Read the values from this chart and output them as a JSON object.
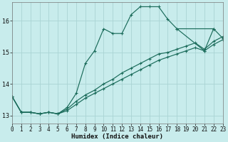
{
  "xlabel": "Humidex (Indice chaleur)",
  "background_color": "#c8ecec",
  "grid_color": "#aad4d4",
  "line_color": "#1a6b5a",
  "xlim": [
    0,
    23
  ],
  "ylim": [
    12.75,
    16.6
  ],
  "xticks": [
    0,
    1,
    2,
    3,
    4,
    5,
    6,
    7,
    8,
    9,
    10,
    11,
    12,
    13,
    14,
    15,
    16,
    17,
    18,
    19,
    20,
    21,
    22,
    23
  ],
  "yticks": [
    13,
    14,
    15,
    16
  ],
  "lines": [
    {
      "x": [
        0,
        1,
        2,
        3,
        4,
        5,
        6,
        7,
        8,
        9,
        10,
        11,
        12,
        13,
        14,
        15,
        16,
        17,
        18,
        22,
        23
      ],
      "y": [
        13.6,
        13.1,
        13.1,
        13.05,
        13.1,
        13.05,
        13.25,
        13.7,
        14.65,
        15.05,
        15.75,
        15.6,
        15.6,
        16.2,
        16.45,
        16.45,
        16.45,
        16.05,
        15.75,
        15.75,
        15.45
      ]
    },
    {
      "x": [
        0,
        1,
        2,
        3,
        4,
        5,
        6,
        7,
        8,
        9,
        10,
        11,
        12,
        13,
        14,
        15,
        16,
        17,
        18,
        19,
        20,
        21,
        22,
        23
      ],
      "y": [
        13.6,
        13.1,
        13.1,
        13.05,
        13.1,
        13.05,
        13.15,
        13.35,
        13.55,
        13.7,
        13.85,
        14.0,
        14.15,
        14.3,
        14.45,
        14.6,
        14.75,
        14.85,
        14.95,
        15.05,
        15.15,
        15.05,
        15.25,
        15.4
      ]
    },
    {
      "x": [
        0,
        1,
        2,
        3,
        4,
        5,
        6,
        7,
        8,
        9,
        10,
        11,
        12,
        13,
        14,
        15,
        16,
        17,
        18,
        19,
        20,
        21,
        22,
        23
      ],
      "y": [
        13.6,
        13.1,
        13.1,
        13.05,
        13.1,
        13.05,
        13.2,
        13.45,
        13.65,
        13.8,
        14.0,
        14.15,
        14.35,
        14.5,
        14.65,
        14.8,
        14.95,
        15.0,
        15.1,
        15.2,
        15.3,
        15.1,
        15.35,
        15.5
      ]
    },
    {
      "x": [
        18,
        21,
        22
      ],
      "y": [
        15.75,
        15.05,
        15.75
      ]
    }
  ],
  "figsize": [
    3.2,
    2.0
  ],
  "dpi": 100
}
